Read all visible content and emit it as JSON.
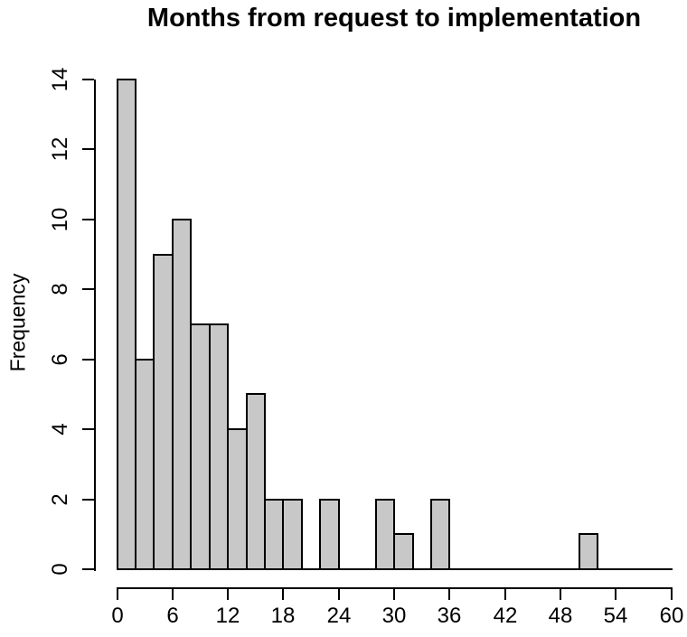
{
  "chart_data": {
    "type": "bar",
    "subtype": "histogram",
    "title": "Months from request to implementation",
    "xlabel": "",
    "ylabel": "Frequency",
    "bin_width": 2,
    "breaks_start": 0,
    "breaks_end": 60,
    "counts": [
      14,
      6,
      9,
      10,
      7,
      7,
      4,
      5,
      2,
      2,
      0,
      2,
      0,
      0,
      2,
      1,
      0,
      2,
      0,
      0,
      0,
      0,
      0,
      0,
      0,
      1,
      0,
      0,
      0,
      0
    ],
    "x_ticks": [
      0,
      6,
      12,
      18,
      24,
      30,
      36,
      42,
      48,
      54,
      60
    ],
    "y_ticks": [
      0,
      2,
      4,
      6,
      8,
      10,
      12,
      14
    ],
    "xlim": [
      0,
      60
    ],
    "ylim": [
      0,
      14
    ],
    "grid": false,
    "legend": "none",
    "bar_fill": "#c8c8c8",
    "bar_border": "#000000",
    "axis_color": "#000000",
    "text_color": "#000000",
    "background": "#ffffff"
  }
}
